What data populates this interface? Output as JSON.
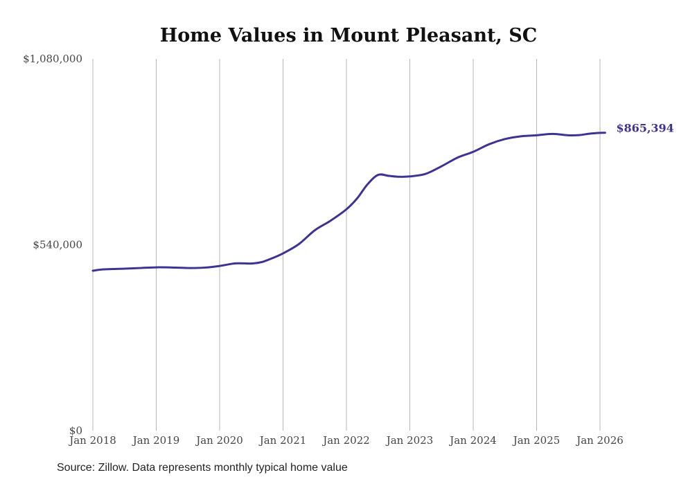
{
  "chart_data": {
    "type": "line",
    "title": "Home Values in Mount Pleasant, SC",
    "xlabel": "",
    "ylabel": "",
    "ylim": [
      0,
      1080000
    ],
    "xlim": [
      2018,
      2026
    ],
    "y_ticks": [
      {
        "value": 0,
        "label": "$0"
      },
      {
        "value": 540000,
        "label": "$540,000"
      },
      {
        "value": 1080000,
        "label": "$1,080,000"
      }
    ],
    "x_ticks": [
      {
        "value": 2018,
        "label": "Jan 2018"
      },
      {
        "value": 2019,
        "label": "Jan 2019"
      },
      {
        "value": 2020,
        "label": "Jan 2020"
      },
      {
        "value": 2021,
        "label": "Jan 2021"
      },
      {
        "value": 2022,
        "label": "Jan 2022"
      },
      {
        "value": 2023,
        "label": "Jan 2023"
      },
      {
        "value": 2024,
        "label": "Jan 2024"
      },
      {
        "value": 2025,
        "label": "Jan 2025"
      },
      {
        "value": 2026,
        "label": "Jan 2026"
      }
    ],
    "grid": "vertical",
    "series": [
      {
        "name": "Typical home value",
        "color": "#3d3393",
        "x": [
          2018,
          2018.17,
          2018.5,
          2018.75,
          2019,
          2019.25,
          2019.5,
          2019.75,
          2020,
          2020.25,
          2020.5,
          2020.67,
          2020.83,
          2021,
          2021.25,
          2021.5,
          2021.75,
          2022,
          2022.17,
          2022.33,
          2022.5,
          2022.67,
          2022.83,
          2023,
          2023.25,
          2023.5,
          2023.75,
          2024,
          2024.25,
          2024.5,
          2024.75,
          2025,
          2025.25,
          2025.5,
          2025.67,
          2025.83,
          2026,
          2026.08
        ],
        "values": [
          464600,
          468500,
          470500,
          472500,
          474500,
          474000,
          472500,
          473500,
          478500,
          486000,
          485500,
          490000,
          501000,
          515000,
          542000,
          582000,
          610000,
          643000,
          675000,
          715000,
          743000,
          740000,
          737500,
          738500,
          746000,
          768000,
          793000,
          810000,
          832000,
          847000,
          855000,
          858000,
          862000,
          858000,
          858500,
          862500,
          865000,
          865394
        ]
      }
    ],
    "end_label": "$865,394",
    "source": "Source: Zillow. Data represents monthly typical home value"
  }
}
